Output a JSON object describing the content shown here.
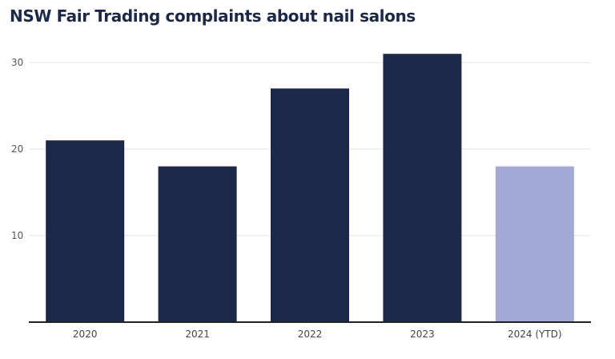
{
  "chart_data": {
    "type": "bar",
    "title": "NSW Fair Trading complaints about nail salons",
    "categories": [
      "2020",
      "2021",
      "2022",
      "2023",
      "2024 (YTD)"
    ],
    "values": [
      21,
      18,
      27,
      31,
      18
    ],
    "colors": [
      "#1b2848",
      "#1b2848",
      "#1b2848",
      "#1b2848",
      "#a3a9d6"
    ],
    "yticks": [
      10,
      20,
      30
    ],
    "ylim": [
      0,
      33
    ],
    "grid": true,
    "xlabel": "",
    "ylabel": ""
  }
}
